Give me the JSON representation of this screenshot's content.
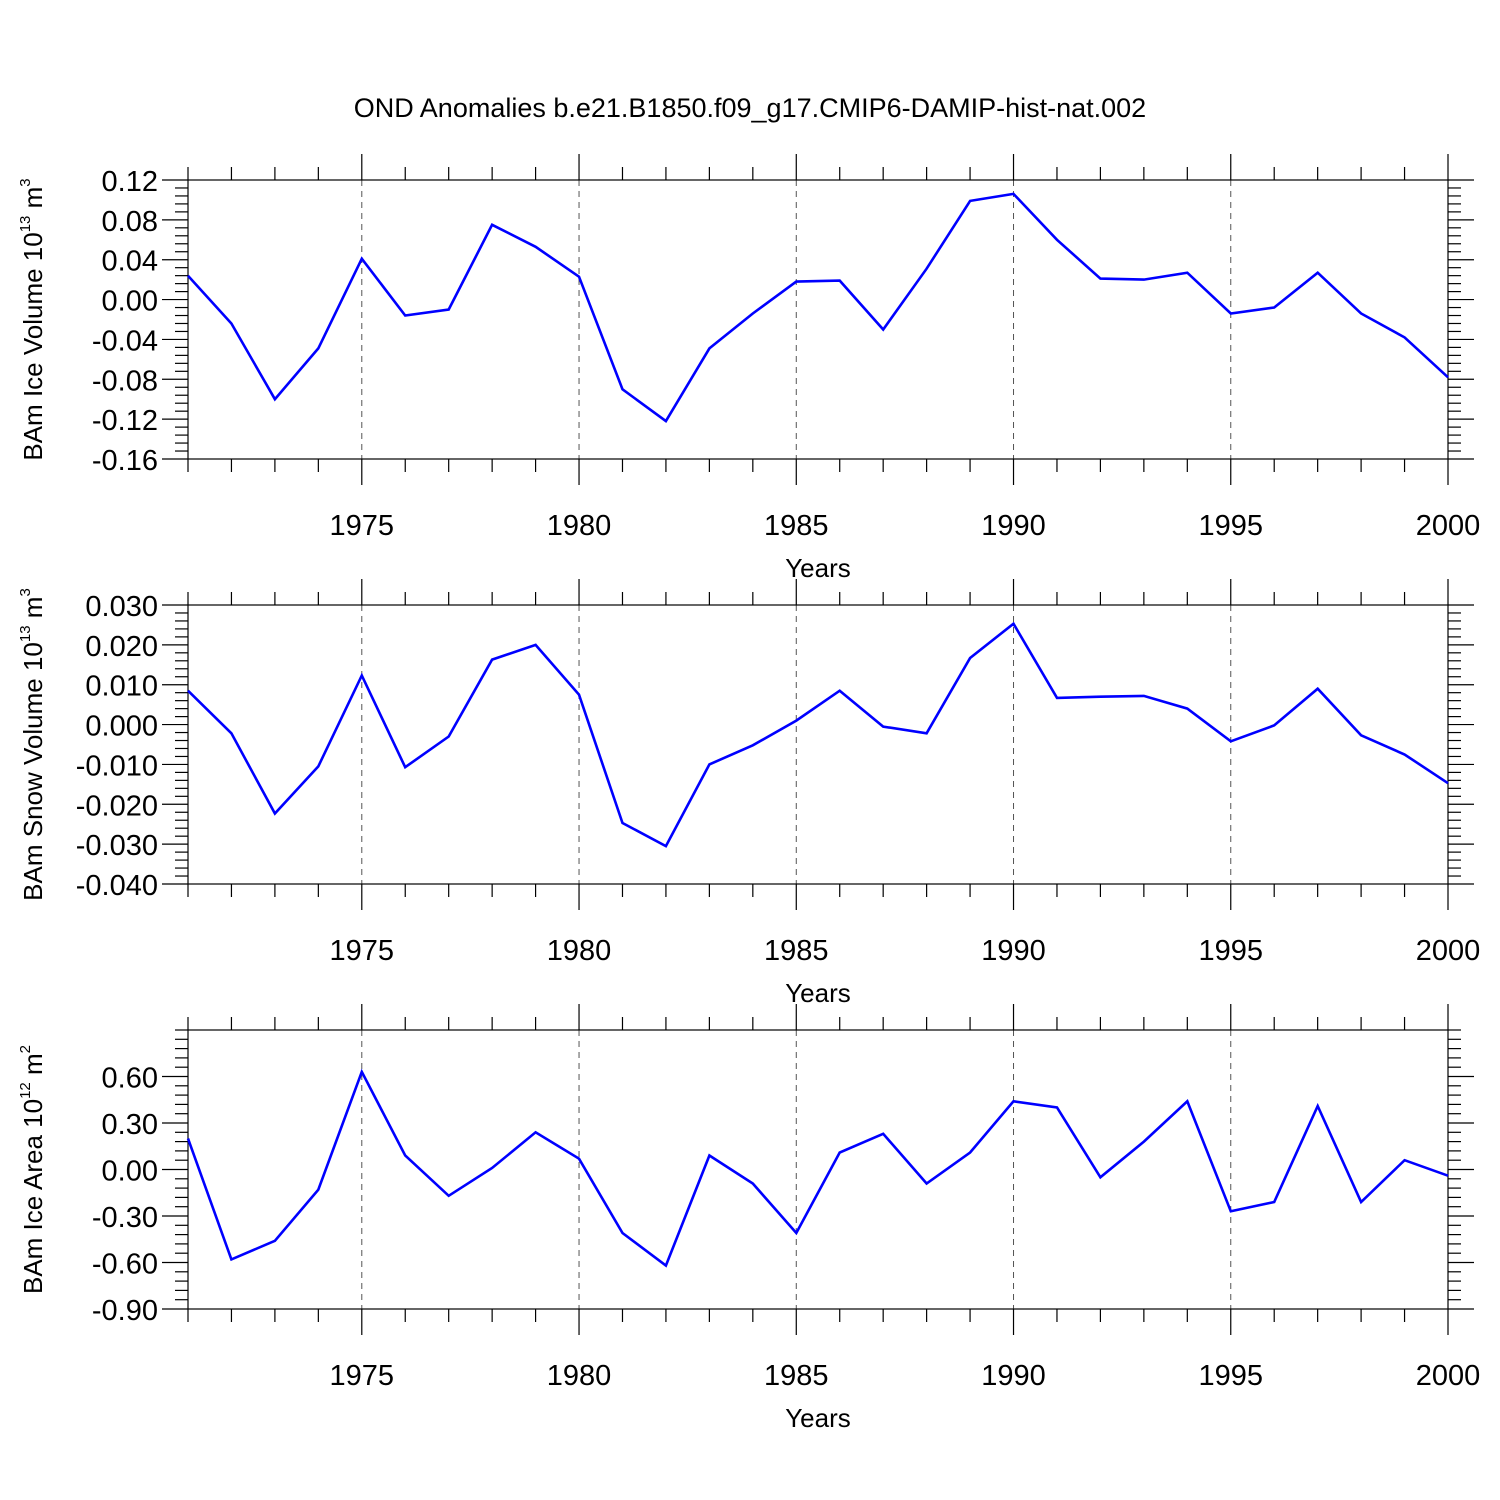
{
  "figure": {
    "title": "OND Anomalies b.e21.B1850.f09_g17.CMIP6-DAMIP-hist-nat.002"
  },
  "colors": {
    "line": "#0000ff",
    "axis": "#000000",
    "grid": "#555555"
  },
  "chart_data": [
    {
      "type": "line",
      "xlabel": "Years",
      "ylabel": {
        "main": "BAm Ice Volume 10",
        "sup": "13",
        "unit": " m",
        "unit_sup": "3"
      },
      "xlim": [
        1971,
        2000
      ],
      "ylim": [
        -0.16,
        0.12
      ],
      "xticks": [
        1975,
        1980,
        1985,
        1990,
        1995,
        2000
      ],
      "xtick_labels": [
        "1975",
        "1980",
        "1985",
        "1990",
        "1995",
        "2000"
      ],
      "yticks": [
        -0.16,
        -0.12,
        -0.08,
        -0.04,
        0.0,
        0.04,
        0.08,
        0.12
      ],
      "ytick_labels": [
        "-0.16",
        "-0.12",
        "-0.08",
        "-0.04",
        "0.00",
        "0.04",
        "0.08",
        "0.12"
      ],
      "grid": "vertical dashed at major x ticks",
      "series": [
        {
          "x": [
            1971,
            1972,
            1973,
            1974,
            1975,
            1976,
            1977,
            1978,
            1979,
            1980,
            1981,
            1982,
            1983,
            1984,
            1985,
            1986,
            1987,
            1988,
            1989,
            1990,
            1991,
            1992,
            1993,
            1994,
            1995,
            1996,
            1997,
            1998,
            1999,
            2000
          ],
          "values": [
            0.024,
            -0.024,
            -0.1,
            -0.049,
            0.041,
            -0.016,
            -0.01,
            0.075,
            0.053,
            0.023,
            -0.09,
            -0.122,
            -0.049,
            -0.014,
            0.018,
            0.019,
            -0.03,
            0.031,
            0.099,
            0.106,
            0.06,
            0.021,
            0.02,
            0.027,
            -0.014,
            -0.008,
            0.027,
            -0.014,
            -0.038,
            -0.078
          ]
        }
      ]
    },
    {
      "type": "line",
      "xlabel": "Years",
      "ylabel": {
        "main": "BAm Snow Volume 10",
        "sup": "13",
        "unit": " m",
        "unit_sup": "3"
      },
      "xlim": [
        1971,
        2000
      ],
      "ylim": [
        -0.04,
        0.03
      ],
      "xticks": [
        1975,
        1980,
        1985,
        1990,
        1995,
        2000
      ],
      "xtick_labels": [
        "1975",
        "1980",
        "1985",
        "1990",
        "1995",
        "2000"
      ],
      "yticks": [
        -0.04,
        -0.03,
        -0.02,
        -0.01,
        0.0,
        0.01,
        0.02,
        0.03
      ],
      "ytick_labels": [
        "-0.040",
        "-0.030",
        "-0.020",
        "-0.010",
        "0.000",
        "0.010",
        "0.020",
        "0.030"
      ],
      "grid": "vertical dashed at major x ticks",
      "series": [
        {
          "x": [
            1971,
            1972,
            1973,
            1974,
            1975,
            1976,
            1977,
            1978,
            1979,
            1980,
            1981,
            1982,
            1983,
            1984,
            1985,
            1986,
            1987,
            1988,
            1989,
            1990,
            1991,
            1992,
            1993,
            1994,
            1995,
            1996,
            1997,
            1998,
            1999,
            2000
          ],
          "values": [
            0.0085,
            -0.0022,
            -0.0223,
            -0.0105,
            0.0123,
            -0.0107,
            -0.003,
            0.0163,
            0.02,
            0.0075,
            -0.0247,
            -0.0305,
            -0.01,
            -0.0052,
            0.001,
            0.0085,
            -0.0005,
            -0.0022,
            0.0167,
            0.0253,
            0.0067,
            0.007,
            0.0072,
            0.004,
            -0.0042,
            -0.0002,
            0.009,
            -0.0027,
            -0.0075,
            -0.0147
          ]
        }
      ]
    },
    {
      "type": "line",
      "xlabel": "Years",
      "ylabel": {
        "main": "BAm Ice Area 10",
        "sup": "12",
        "unit": " m",
        "unit_sup": "2"
      },
      "xlim": [
        1971,
        2000
      ],
      "ylim": [
        -0.9,
        0.9
      ],
      "xticks": [
        1975,
        1980,
        1985,
        1990,
        1995,
        2000
      ],
      "xtick_labels": [
        "1975",
        "1980",
        "1985",
        "1990",
        "1995",
        "2000"
      ],
      "yticks": [
        -0.9,
        -0.6,
        -0.3,
        0.0,
        0.3,
        0.6
      ],
      "ytick_labels": [
        "-0.90",
        "-0.60",
        "-0.30",
        "0.00",
        "0.30",
        "0.60"
      ],
      "grid": "vertical dashed at major x ticks",
      "series": [
        {
          "x": [
            1971,
            1972,
            1973,
            1974,
            1975,
            1976,
            1977,
            1978,
            1979,
            1980,
            1981,
            1982,
            1983,
            1984,
            1985,
            1986,
            1987,
            1988,
            1989,
            1990,
            1991,
            1992,
            1993,
            1994,
            1995,
            1996,
            1997,
            1998,
            1999,
            2000
          ],
          "values": [
            0.2,
            -0.58,
            -0.46,
            -0.13,
            0.63,
            0.09,
            -0.17,
            0.01,
            0.24,
            0.07,
            -0.41,
            -0.62,
            0.09,
            -0.09,
            -0.41,
            0.11,
            0.23,
            -0.09,
            0.11,
            0.44,
            0.4,
            -0.05,
            0.18,
            0.44,
            -0.27,
            -0.21,
            0.41,
            -0.21,
            0.06,
            -0.04
          ]
        }
      ]
    }
  ]
}
